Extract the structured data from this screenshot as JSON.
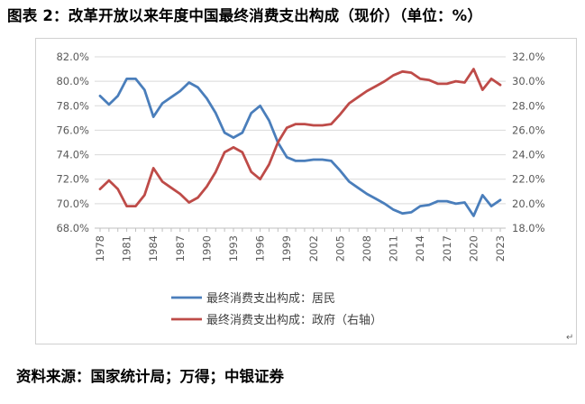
{
  "figure": {
    "title": "图表 2：改革开放以来年度中国最终消费支出构成（现价）（单位：%）",
    "source": "资料来源：国家统计局；万得；中银证券"
  },
  "colors": {
    "resident": "#4a7ebb",
    "government": "#be4b48",
    "grid": "#d9d9d9",
    "axis": "#bfbfbf",
    "text": "#595959"
  },
  "chart_data": {
    "type": "line",
    "title": "",
    "xlabel": "",
    "ylabel_left": "",
    "ylabel_right": "",
    "ylim_left": [
      68,
      82
    ],
    "ylim_right": [
      18,
      32
    ],
    "ticks_left": [
      "68.0%",
      "70.0%",
      "72.0%",
      "74.0%",
      "76.0%",
      "78.0%",
      "80.0%",
      "82.0%"
    ],
    "ticks_right": [
      "18.0%",
      "20.0%",
      "22.0%",
      "24.0%",
      "26.0%",
      "28.0%",
      "30.0%",
      "32.0%"
    ],
    "tick_labels_x": [
      "1978",
      "1981",
      "1984",
      "1987",
      "1990",
      "1993",
      "1996",
      "1999",
      "2002",
      "2005",
      "2008",
      "2011",
      "2014",
      "2017",
      "2020",
      "2023"
    ],
    "x": [
      1978,
      1979,
      1980,
      1981,
      1982,
      1983,
      1984,
      1985,
      1986,
      1987,
      1988,
      1989,
      1990,
      1991,
      1992,
      1993,
      1994,
      1995,
      1996,
      1997,
      1998,
      1999,
      2000,
      2001,
      2002,
      2003,
      2004,
      2005,
      2006,
      2007,
      2008,
      2009,
      2010,
      2011,
      2012,
      2013,
      2014,
      2015,
      2016,
      2017,
      2018,
      2019,
      2020,
      2021,
      2022,
      2023
    ],
    "series": [
      {
        "name": "最终消费支出构成：居民",
        "axis": "left",
        "values": [
          78.8,
          78.1,
          78.8,
          80.2,
          80.2,
          79.3,
          77.1,
          78.2,
          78.7,
          79.2,
          79.9,
          79.5,
          78.6,
          77.4,
          75.8,
          75.4,
          75.8,
          77.4,
          78.0,
          76.8,
          75.0,
          73.8,
          73.5,
          73.5,
          73.6,
          73.6,
          73.5,
          72.7,
          71.8,
          71.3,
          70.8,
          70.4,
          70.0,
          69.5,
          69.2,
          69.3,
          69.8,
          69.9,
          70.2,
          70.2,
          70.0,
          70.1,
          69.0,
          70.7,
          69.8,
          70.3
        ]
      },
      {
        "name": "最终消费支出构成：政府（右轴）",
        "axis": "right",
        "values": [
          21.2,
          21.9,
          21.2,
          19.8,
          19.8,
          20.7,
          22.9,
          21.8,
          21.3,
          20.8,
          20.1,
          20.5,
          21.4,
          22.6,
          24.2,
          24.6,
          24.2,
          22.6,
          22.0,
          23.2,
          25.0,
          26.2,
          26.5,
          26.5,
          26.4,
          26.4,
          26.5,
          27.3,
          28.2,
          28.7,
          29.2,
          29.6,
          30.0,
          30.5,
          30.8,
          30.7,
          30.2,
          30.1,
          29.8,
          29.8,
          30.0,
          29.9,
          31.0,
          29.3,
          30.2,
          29.7
        ]
      }
    ],
    "legend": {
      "placement": "bottom-center",
      "labels": [
        "最终消费支出构成：居民",
        "最终消费支出构成：政府（右轴）"
      ]
    }
  }
}
